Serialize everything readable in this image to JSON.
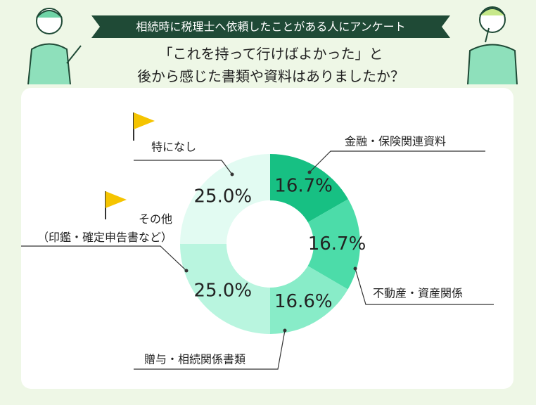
{
  "chart_data": {
    "type": "donut",
    "title": "相続時に税理士へ依頼したことがある人にアンケート",
    "subtitle": [
      "「これを持って行けばよかった」と",
      "後から感じた書類や資料はありましたか？"
    ],
    "categories": [
      "金融・保険関連資料",
      "不動産・資産関係",
      "贈与・相続関係書類",
      "その他\n（印鑑・確定申告書など）",
      "特になし"
    ],
    "values": [
      16.7,
      16.7,
      16.6,
      25.0,
      25.0
    ],
    "value_labels": [
      "16.7%",
      "16.7%",
      "16.6%",
      "25.0%",
      "25.0%"
    ],
    "colors": [
      "#17c083",
      "#4cdca9",
      "#88ecc8",
      "#b9f5df",
      "#e2fbf2"
    ]
  }
}
